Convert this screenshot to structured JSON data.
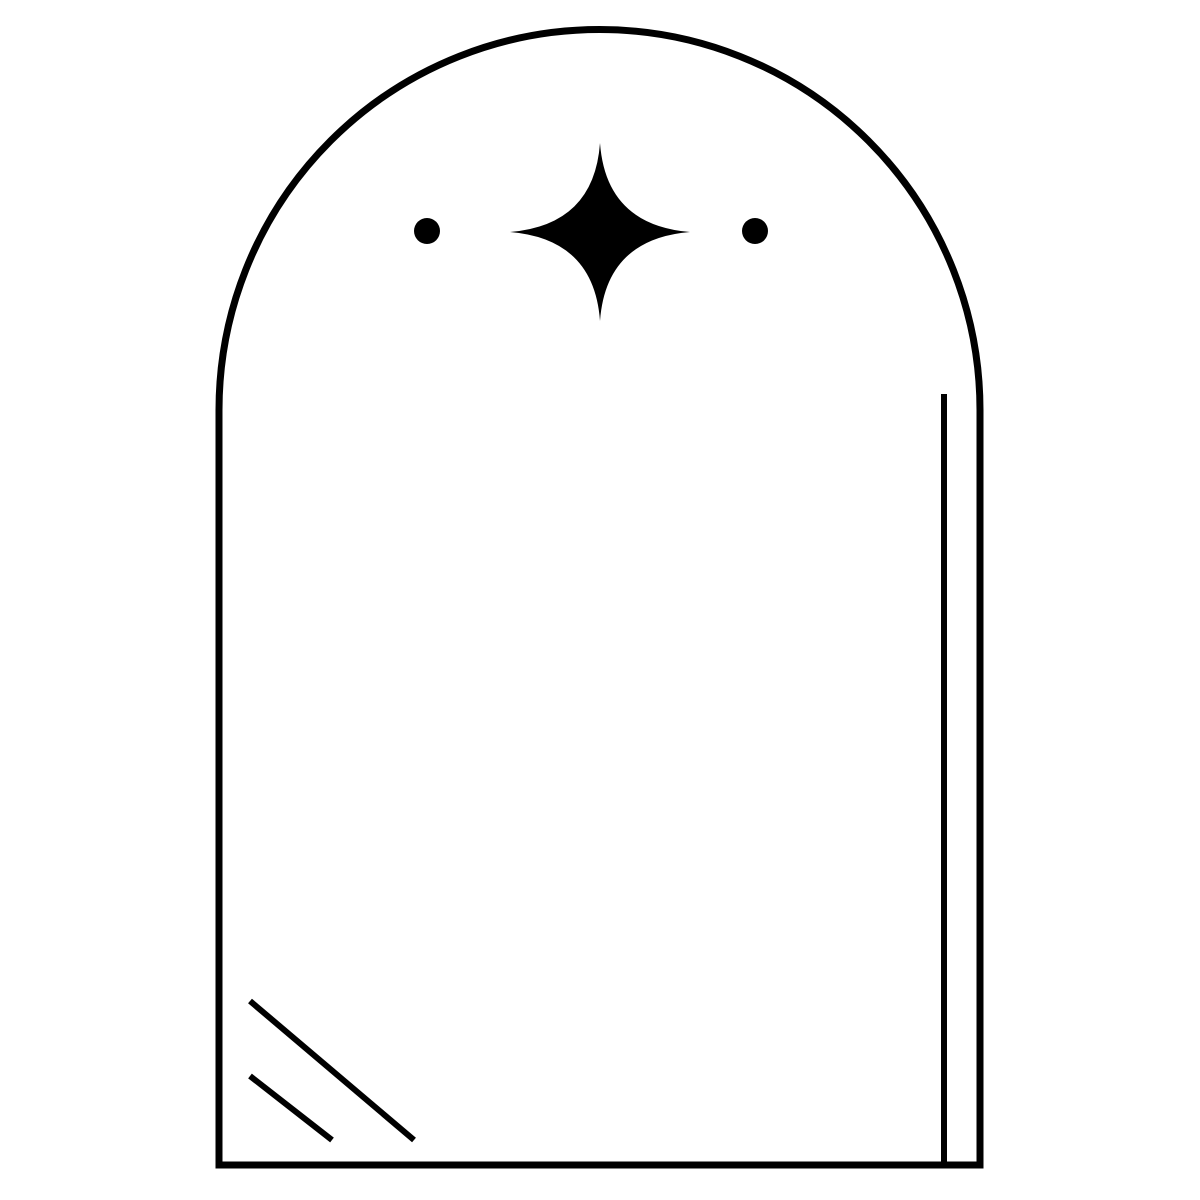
{
  "artwork": {
    "background_color": "#ffffff",
    "stroke_color": "#000000",
    "frame_shape": "arch",
    "icons": [
      "arch-frame-outline",
      "four-point-star-icon",
      "left-dot-icon",
      "right-dot-icon",
      "right-vertical-line",
      "glare-line-long",
      "glare-line-short"
    ]
  }
}
